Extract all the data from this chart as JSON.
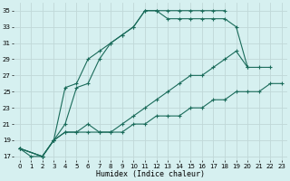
{
  "xlabel": "Humidex (Indice chaleur)",
  "bg_color": "#d6f0f0",
  "grid_color": "#c0d8d8",
  "line_color": "#1a6b5a",
  "xlim": [
    -0.5,
    23.5
  ],
  "ylim": [
    16.5,
    36
  ],
  "xticks": [
    0,
    1,
    2,
    3,
    4,
    5,
    6,
    7,
    8,
    9,
    10,
    11,
    12,
    13,
    14,
    15,
    16,
    17,
    18,
    19,
    20,
    21,
    22,
    23
  ],
  "yticks": [
    17,
    19,
    21,
    23,
    25,
    27,
    29,
    31,
    33,
    35
  ],
  "curves": [
    {
      "x": [
        0,
        1,
        2,
        3,
        4,
        5,
        6,
        7,
        8,
        9,
        10,
        11,
        12,
        13,
        14,
        15,
        16,
        17,
        18
      ],
      "y": [
        18,
        17,
        17,
        19,
        25.5,
        26,
        29,
        30,
        31,
        32,
        33,
        35,
        35,
        35,
        35,
        35,
        35,
        35,
        35
      ]
    },
    {
      "x": [
        0,
        2,
        3,
        4,
        5,
        6,
        7,
        8,
        9,
        10,
        11,
        12,
        13,
        14,
        15,
        16,
        17,
        18,
        19,
        20
      ],
      "y": [
        18,
        17,
        19,
        21,
        25.5,
        26,
        29,
        31,
        32,
        33,
        35,
        35,
        34,
        34,
        34,
        34,
        34,
        34,
        33,
        28
      ]
    },
    {
      "x": [
        0,
        2,
        3,
        4,
        5,
        6,
        7,
        8,
        9,
        10,
        11,
        12,
        13,
        14,
        15,
        16,
        17,
        18,
        19,
        20,
        21,
        22
      ],
      "y": [
        18,
        17,
        19,
        20,
        20,
        21,
        20,
        20,
        21,
        22,
        23,
        24,
        25,
        26,
        27,
        27,
        28,
        29,
        30,
        28,
        28,
        28
      ]
    },
    {
      "x": [
        0,
        2,
        3,
        4,
        5,
        6,
        7,
        8,
        9,
        10,
        11,
        12,
        13,
        14,
        15,
        16,
        17,
        18,
        19,
        20,
        21,
        22,
        23
      ],
      "y": [
        18,
        17,
        19,
        20,
        20,
        20,
        20,
        20,
        20,
        21,
        21,
        22,
        22,
        22,
        23,
        23,
        24,
        24,
        25,
        25,
        25,
        26,
        26
      ]
    }
  ]
}
